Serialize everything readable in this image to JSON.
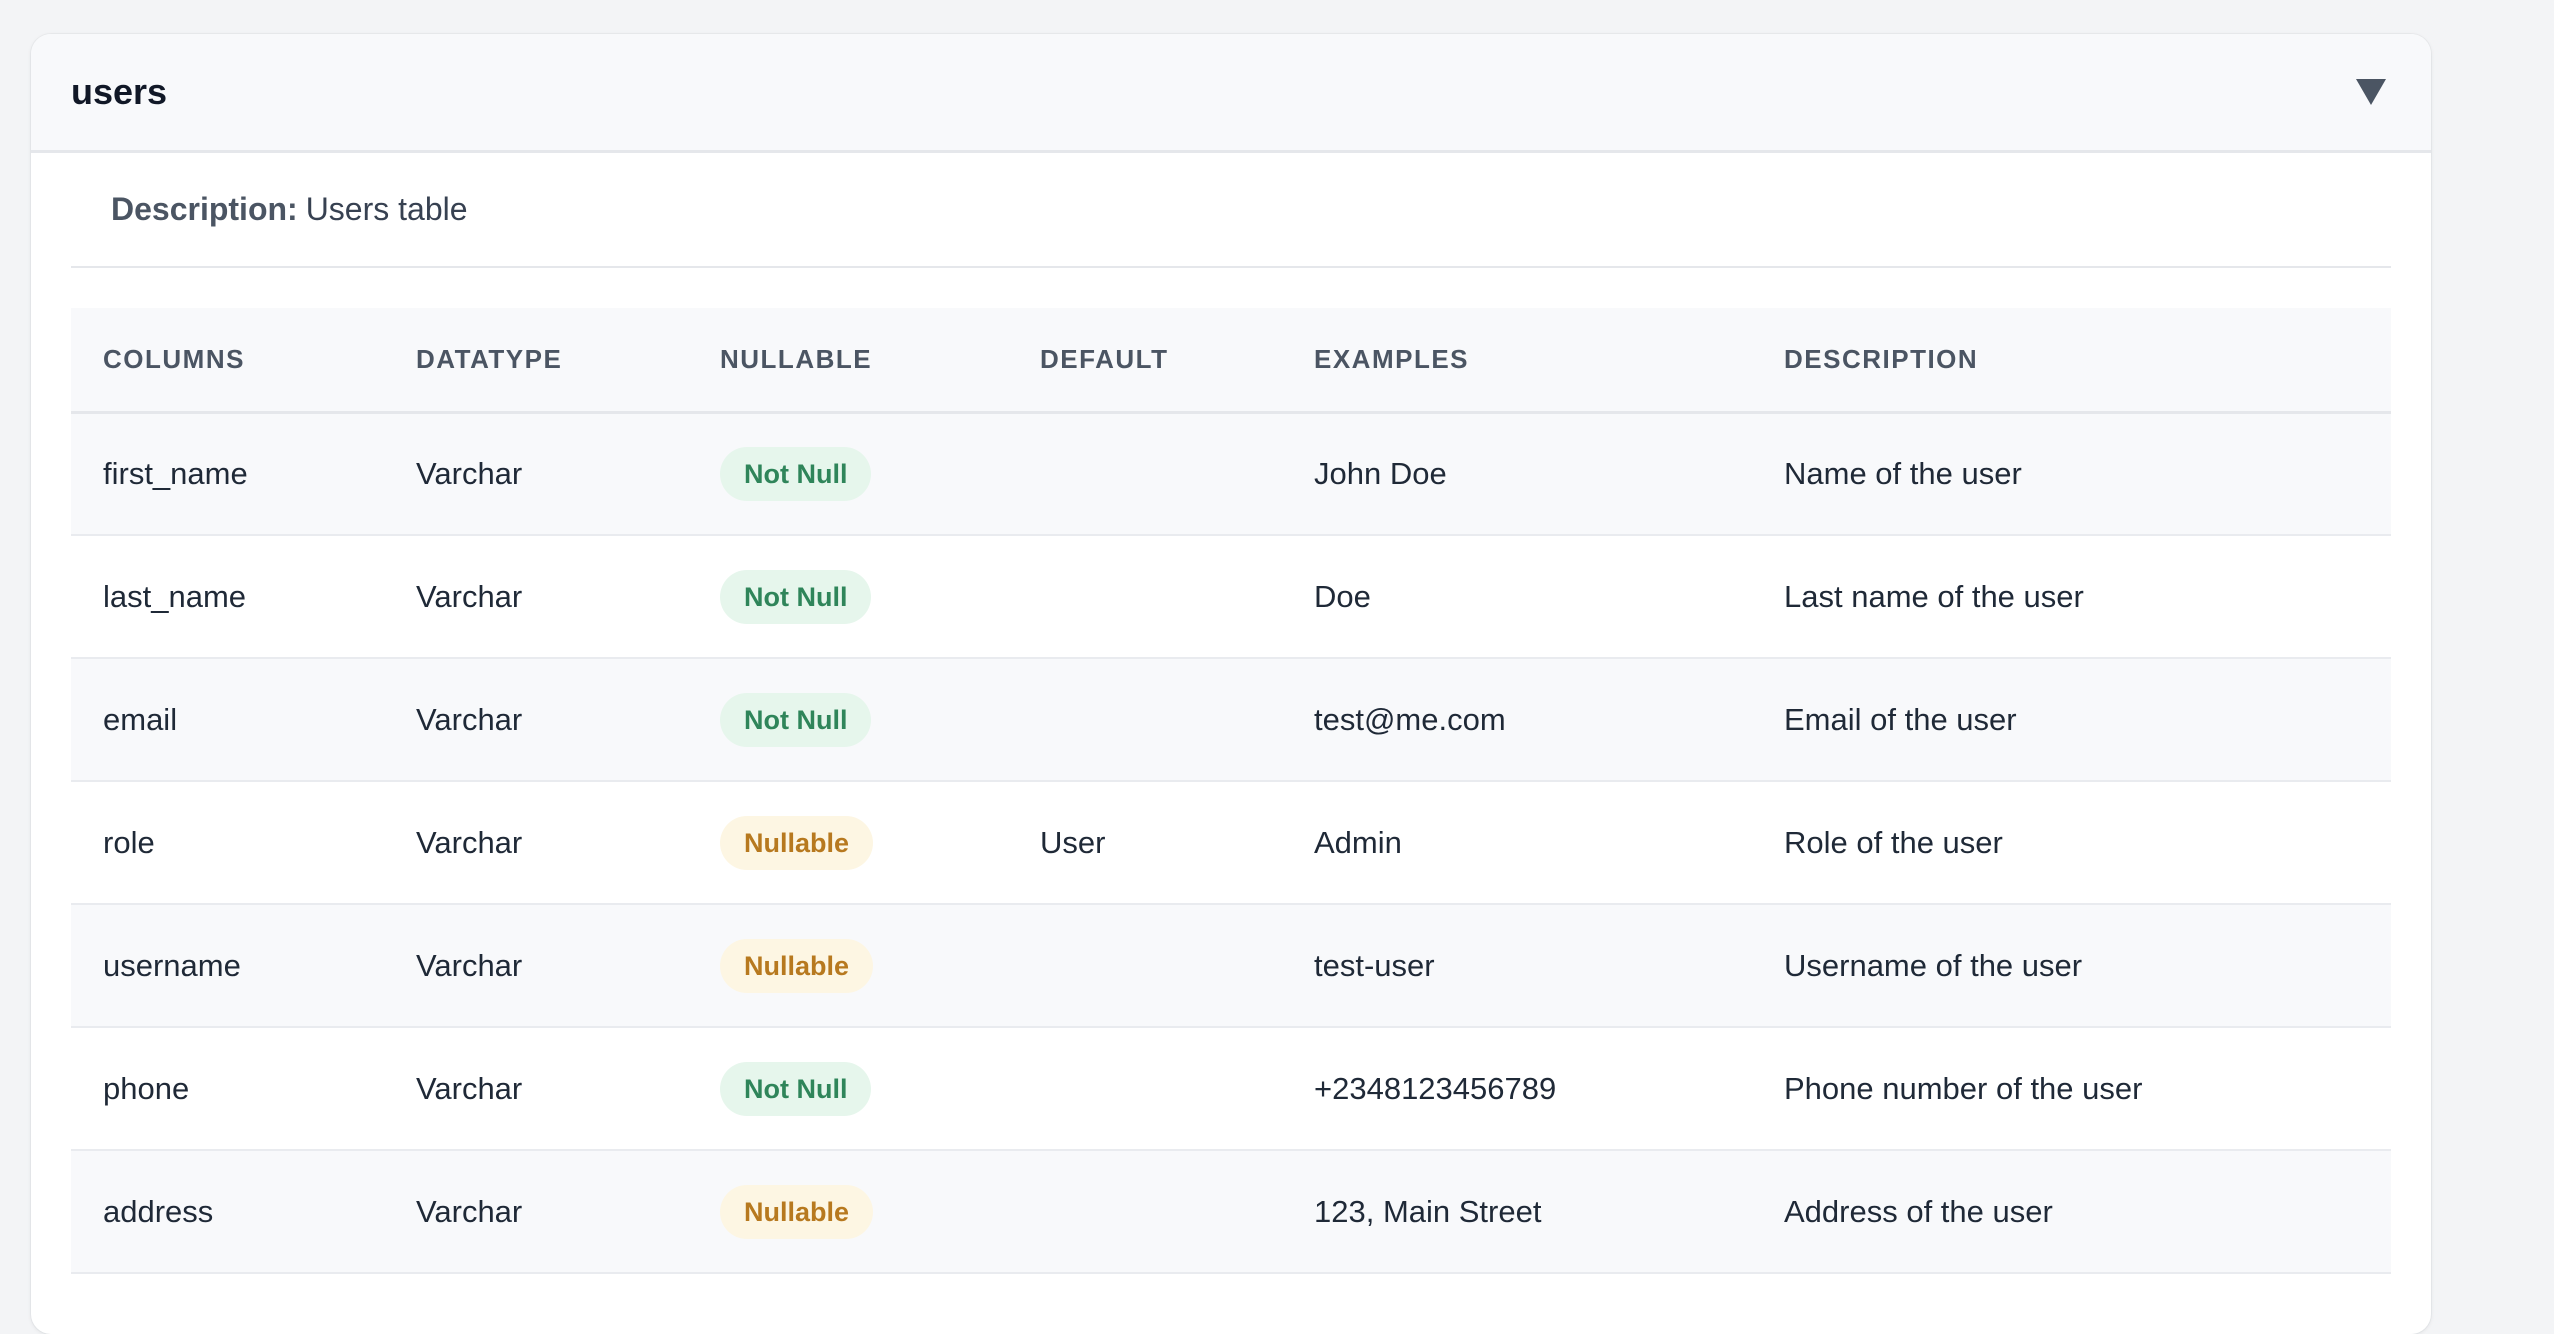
{
  "table": {
    "name": "users",
    "description_label": "Description:",
    "description": "Users table"
  },
  "columns_header": [
    "COLUMNS",
    "DATATYPE",
    "NULLABLE",
    "DEFAULT",
    "EXAMPLES",
    "DESCRIPTION"
  ],
  "rows": [
    {
      "column": "first_name",
      "datatype": "Varchar",
      "nullable": "Not Null",
      "default": "",
      "example": "John Doe",
      "description": "Name of the user"
    },
    {
      "column": "last_name",
      "datatype": "Varchar",
      "nullable": "Not Null",
      "default": "",
      "example": "Doe",
      "description": "Last name of the user"
    },
    {
      "column": "email",
      "datatype": "Varchar",
      "nullable": "Not Null",
      "default": "",
      "example": "test@me.com",
      "description": "Email of the user"
    },
    {
      "column": "role",
      "datatype": "Varchar",
      "nullable": "Nullable",
      "default": "User",
      "example": "Admin",
      "description": "Role of the user"
    },
    {
      "column": "username",
      "datatype": "Varchar",
      "nullable": "Nullable",
      "default": "",
      "example": "test-user",
      "description": "Username of the user"
    },
    {
      "column": "phone",
      "datatype": "Varchar",
      "nullable": "Not Null",
      "default": "",
      "example": "+2348123456789",
      "description": "Phone number of the user"
    },
    {
      "column": "address",
      "datatype": "Varchar",
      "nullable": "Nullable",
      "default": "",
      "example": "123, Main Street",
      "description": "Address of the user"
    }
  ],
  "icons": {
    "toggle": "triangle-down-icon"
  },
  "colors": {
    "not_null_bg": "#e6f6ec",
    "not_null_text": "#2f855a",
    "nullable_bg": "#fdf6e3",
    "nullable_text": "#b7791f"
  }
}
